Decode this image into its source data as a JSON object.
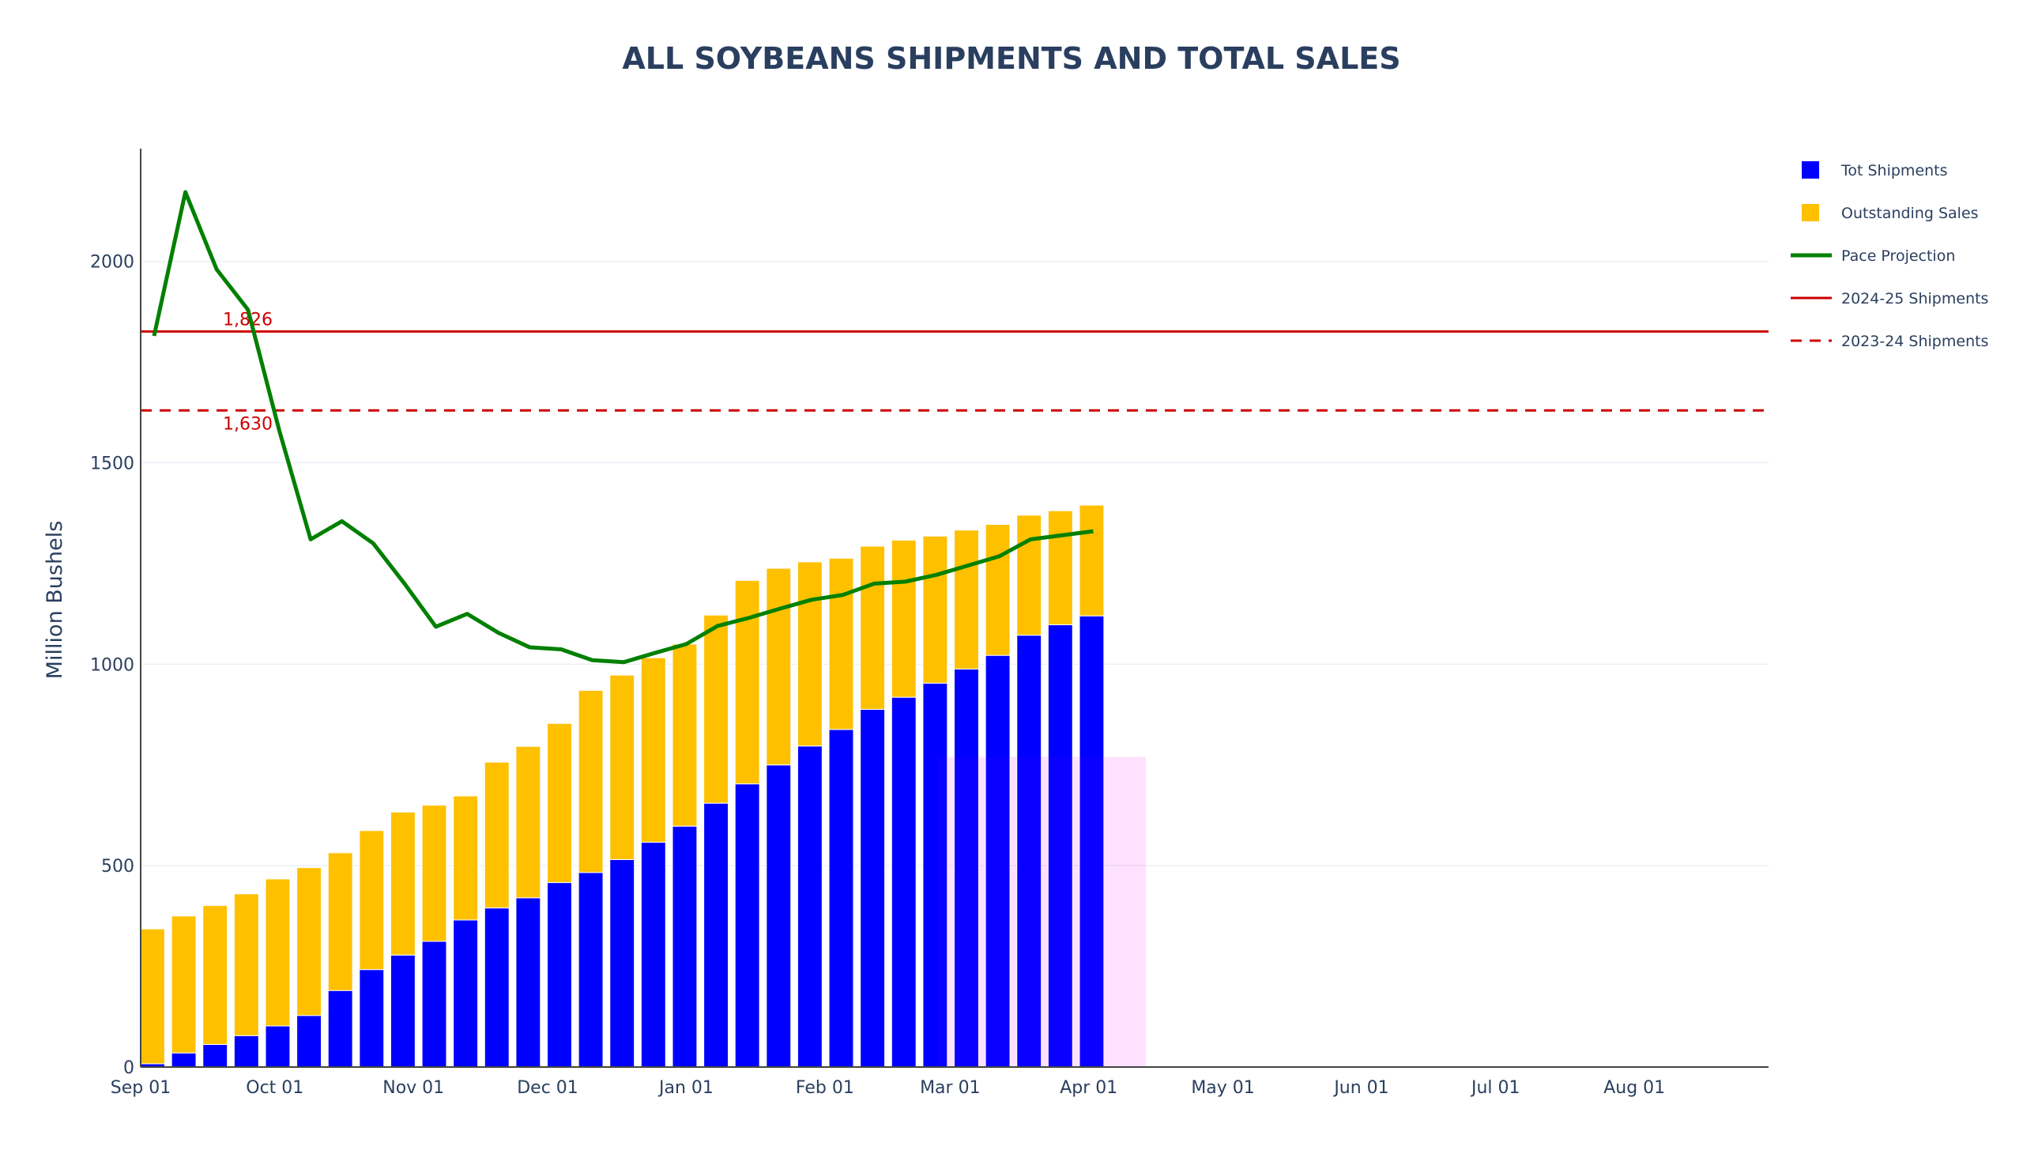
{
  "chart_data": {
    "type": "bar",
    "title": "ALL SOYBEANS SHIPMENTS AND TOTAL SALES",
    "xlabel": "",
    "ylabel": "Million Bushels",
    "ylim": [
      0,
      2280
    ],
    "xlim": [
      "2025-09-01",
      "2026-08-31"
    ],
    "yticks": [
      0,
      500,
      1000,
      1500,
      2000
    ],
    "xticks": [
      {
        "date": "2025-09-01",
        "label": "Sep 01"
      },
      {
        "date": "2025-10-01",
        "label": "Oct 01"
      },
      {
        "date": "2025-11-01",
        "label": "Nov 01"
      },
      {
        "date": "2025-12-01",
        "label": "Dec 01"
      },
      {
        "date": "2026-01-01",
        "label": "Jan 01"
      },
      {
        "date": "2026-02-01",
        "label": "Feb 01"
      },
      {
        "date": "2026-03-01",
        "label": "Mar 01"
      },
      {
        "date": "2026-04-01",
        "label": "Apr 01"
      },
      {
        "date": "2026-05-01",
        "label": "May 01"
      },
      {
        "date": "2026-06-01",
        "label": "Jun 01"
      },
      {
        "date": "2026-07-01",
        "label": "Jul 01"
      },
      {
        "date": "2026-08-01",
        "label": "Aug 01"
      }
    ],
    "grid": true,
    "legend_position": "top-right",
    "barmode": "stack",
    "x": [
      "2025-09-04",
      "2025-09-11",
      "2025-09-18",
      "2025-09-25",
      "2025-10-02",
      "2025-10-09",
      "2025-10-16",
      "2025-10-23",
      "2025-10-30",
      "2025-11-06",
      "2025-11-13",
      "2025-11-20",
      "2025-11-27",
      "2025-12-04",
      "2025-12-11",
      "2025-12-18",
      "2025-12-25",
      "2026-01-01",
      "2026-01-08",
      "2026-01-15",
      "2026-01-22",
      "2026-01-29",
      "2026-02-05",
      "2026-02-12",
      "2026-02-19",
      "2026-02-26",
      "2026-03-05",
      "2026-03-12",
      "2026-03-19",
      "2026-03-26",
      "2026-04-02"
    ],
    "series": [
      {
        "name": "Tot Shipments",
        "type": "bar",
        "color": "#0000ff",
        "values": [
          8,
          35,
          56,
          78,
          102,
          128,
          190,
          242,
          278,
          312,
          365,
          395,
          420,
          458,
          483,
          515,
          558,
          598,
          655,
          703,
          750,
          797,
          838,
          888,
          918,
          953,
          988,
          1022,
          1072,
          1098,
          1120
        ]
      },
      {
        "name": "Outstanding Sales",
        "type": "bar",
        "color": "#ffc000",
        "values": [
          335,
          340,
          345,
          352,
          365,
          367,
          342,
          345,
          355,
          338,
          308,
          362,
          376,
          395,
          452,
          458,
          458,
          452,
          467,
          505,
          488,
          457,
          425,
          405,
          390,
          365,
          345,
          325,
          298,
          283,
          275
        ]
      },
      {
        "name": "Pace Projection",
        "type": "line",
        "color": "#008000",
        "values": [
          1815,
          2172,
          1980,
          1880,
          1580,
          1310,
          1355,
          1300,
          1200,
          1093,
          1125,
          1078,
          1042,
          1037,
          1010,
          1005,
          1028,
          1050,
          1095,
          1115,
          1138,
          1160,
          1172,
          1200,
          1205,
          1222,
          1245,
          1268,
          1310,
          1320,
          1330
        ]
      },
      {
        "name": "2024-25 Shipments",
        "type": "hline",
        "color": "#cc0000",
        "value": 1826,
        "label": "1,826"
      },
      {
        "name": "2023-24 Shipments",
        "type": "hline",
        "color": "#cc0000",
        "dash": "dash",
        "value": 1630,
        "label": "1,630"
      }
    ],
    "highlight_band": {
      "x_start": "2026-03-01",
      "x_end": "2026-04-12",
      "y_top": 770,
      "color": "#ff00ff"
    }
  }
}
